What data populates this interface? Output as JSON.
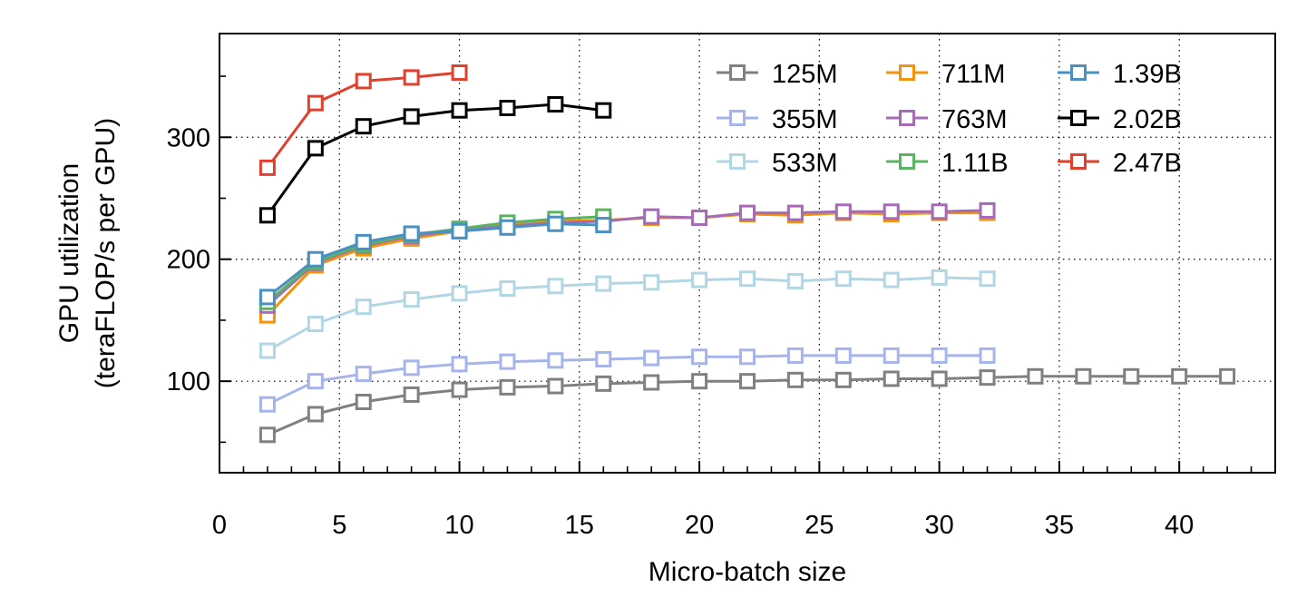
{
  "chart_data": {
    "type": "line",
    "title": "",
    "xlabel": "Micro-batch size",
    "ylabel": [
      "GPU utilization",
      "(teraFLOP/s per GPU)"
    ],
    "xlim": [
      0,
      44
    ],
    "ylim": [
      25,
      385
    ],
    "xticks": [
      "0",
      "5",
      "10",
      "15",
      "20",
      "25",
      "30",
      "35",
      "40"
    ],
    "yticks": [
      "100",
      "200",
      "300"
    ],
    "grid": "dotted at major ticks",
    "legend": {
      "placement": "top-right",
      "columns": 3
    },
    "marker": "square-hollow",
    "series": [
      {
        "name": "125M",
        "color": "#808080",
        "x": [
          2,
          4,
          6,
          8,
          10,
          12,
          14,
          16,
          18,
          20,
          22,
          24,
          26,
          28,
          30,
          32,
          34,
          36,
          38,
          40,
          42
        ],
        "y": [
          56,
          73,
          83,
          89,
          93,
          95,
          96,
          98,
          99,
          100,
          100,
          101,
          101,
          102,
          102,
          103,
          104,
          104,
          104,
          104,
          104
        ]
      },
      {
        "name": "355M",
        "color": "#a5b4eb",
        "x": [
          2,
          4,
          6,
          8,
          10,
          12,
          14,
          16,
          18,
          20,
          22,
          24,
          26,
          28,
          30,
          32
        ],
        "y": [
          81,
          100,
          106,
          111,
          114,
          116,
          117,
          118,
          119,
          120,
          120,
          121,
          121,
          121,
          121,
          121
        ]
      },
      {
        "name": "533M",
        "color": "#b3d6e4",
        "x": [
          2,
          4,
          6,
          8,
          10,
          12,
          14,
          16,
          18,
          20,
          22,
          24,
          26,
          28,
          30,
          32
        ],
        "y": [
          125,
          147,
          161,
          167,
          172,
          176,
          178,
          180,
          181,
          183,
          184,
          182,
          184,
          183,
          185,
          184
        ]
      },
      {
        "name": "711M",
        "color": "#f5930a",
        "x": [
          2,
          4,
          6,
          8,
          10,
          12,
          14,
          16,
          18,
          20,
          22,
          24,
          26,
          28,
          30,
          32
        ],
        "y": [
          154,
          195,
          209,
          217,
          223,
          228,
          231,
          232,
          234,
          234,
          237,
          236,
          238,
          237,
          238,
          238
        ]
      },
      {
        "name": "763M",
        "color": "#a56cb6",
        "x": [
          2,
          4,
          6,
          8,
          10,
          12,
          14,
          16,
          18,
          20,
          22,
          24,
          26,
          28,
          30,
          32
        ],
        "y": [
          162,
          197,
          211,
          219,
          224,
          227,
          230,
          231,
          235,
          234,
          238,
          238,
          239,
          239,
          239,
          240
        ]
      },
      {
        "name": "1.11B",
        "color": "#5bb462",
        "x": [
          2,
          4,
          6,
          8,
          10,
          12,
          14,
          16
        ],
        "y": [
          165,
          198,
          212,
          220,
          225,
          230,
          233,
          235
        ]
      },
      {
        "name": "1.39B",
        "color": "#4a90c0",
        "x": [
          2,
          4,
          6,
          8,
          10,
          12,
          14,
          16
        ],
        "y": [
          169,
          200,
          214,
          221,
          223,
          226,
          229,
          228
        ]
      },
      {
        "name": "2.02B",
        "color": "#000000",
        "x": [
          2,
          4,
          6,
          8,
          10,
          12,
          14,
          16
        ],
        "y": [
          236,
          291,
          309,
          317,
          322,
          324,
          327,
          322
        ]
      },
      {
        "name": "2.47B",
        "color": "#e0402e",
        "x": [
          2,
          4,
          6,
          8,
          10
        ],
        "y": [
          275,
          328,
          346,
          349,
          353
        ]
      }
    ]
  }
}
